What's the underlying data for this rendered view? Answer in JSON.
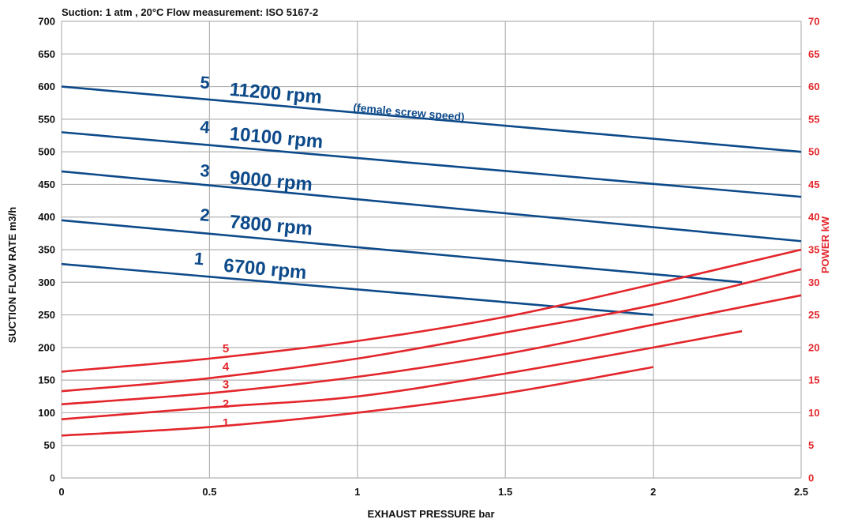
{
  "header": "Suction: 1 atm , 20°C   Flow measurement: ISO 5167-2",
  "colors": {
    "flow": "#0d4a8a",
    "power": "#e3262b",
    "grid": "#b3b3b3",
    "axis_text": "#111111"
  },
  "chart_data": {
    "type": "line",
    "xlabel": "EXHAUST PRESSURE bar",
    "ylabel": "SUCTION FLOW RATE m3/h",
    "y2label": "POWER kW",
    "xlim": [
      0,
      2.5
    ],
    "ylim": [
      0,
      700
    ],
    "y2lim": [
      0,
      70
    ],
    "xticks": [
      "0",
      "0.5",
      "1",
      "1.5",
      "2",
      "2.5"
    ],
    "yticks": [
      "0",
      "50",
      "100",
      "150",
      "200",
      "250",
      "300",
      "350",
      "400",
      "450",
      "500",
      "550",
      "600",
      "650",
      "700"
    ],
    "y2ticks": [
      "0",
      "5",
      "10",
      "15",
      "20",
      "25",
      "30",
      "35",
      "40",
      "45",
      "50",
      "55",
      "60",
      "65",
      "70"
    ],
    "grid": true,
    "flow_series": [
      {
        "name": "1",
        "rpm": "6700 rpm",
        "points": [
          [
            0,
            328
          ],
          [
            2.0,
            250
          ]
        ]
      },
      {
        "name": "2",
        "rpm": "7800 rpm",
        "points": [
          [
            0,
            395
          ],
          [
            2.3,
            300
          ]
        ]
      },
      {
        "name": "3",
        "rpm": "9000 rpm",
        "points": [
          [
            0,
            470
          ],
          [
            2.5,
            363
          ]
        ]
      },
      {
        "name": "4",
        "rpm": "10100 rpm",
        "points": [
          [
            0,
            530
          ],
          [
            2.5,
            431
          ]
        ]
      },
      {
        "name": "5",
        "rpm": "11200 rpm",
        "note": "(female screw speed)",
        "points": [
          [
            0,
            600
          ],
          [
            2.5,
            500
          ]
        ]
      }
    ],
    "power_series": [
      {
        "name": "1",
        "points": [
          [
            0,
            6.5
          ],
          [
            0.5,
            7.8
          ],
          [
            1.0,
            10.0
          ],
          [
            1.5,
            13.0
          ],
          [
            2.0,
            17.0
          ]
        ]
      },
      {
        "name": "2",
        "points": [
          [
            0,
            9.0
          ],
          [
            0.5,
            10.8
          ],
          [
            1.0,
            12.5
          ],
          [
            1.5,
            16.0
          ],
          [
            2.0,
            20.0
          ],
          [
            2.3,
            22.5
          ]
        ]
      },
      {
        "name": "3",
        "points": [
          [
            0,
            11.3
          ],
          [
            0.5,
            13.0
          ],
          [
            1.0,
            15.5
          ],
          [
            1.5,
            19.0
          ],
          [
            2.0,
            23.5
          ],
          [
            2.5,
            28.0
          ]
        ]
      },
      {
        "name": "4",
        "points": [
          [
            0,
            13.3
          ],
          [
            0.5,
            15.3
          ],
          [
            1.0,
            18.3
          ],
          [
            1.5,
            22.3
          ],
          [
            2.0,
            26.5
          ],
          [
            2.5,
            32.0
          ]
        ]
      },
      {
        "name": "5",
        "points": [
          [
            0,
            16.3
          ],
          [
            0.5,
            18.3
          ],
          [
            1.0,
            21.0
          ],
          [
            1.5,
            24.7
          ],
          [
            2.0,
            29.7
          ],
          [
            2.5,
            35.0
          ]
        ]
      }
    ]
  }
}
